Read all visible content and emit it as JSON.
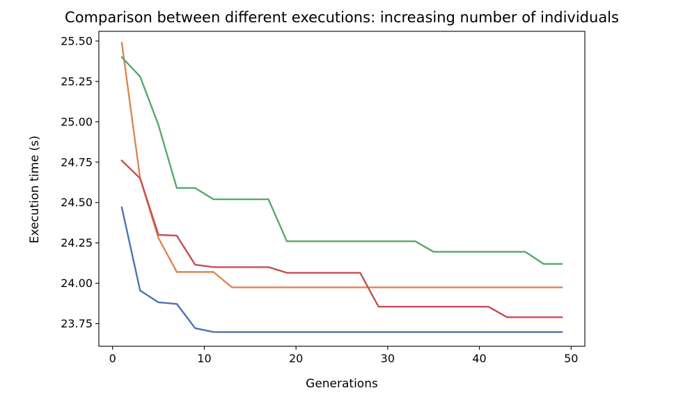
{
  "chart_data": {
    "type": "line",
    "title": "Comparison between different executions: increasing number of individuals",
    "xlabel": "Generations",
    "ylabel": "Execution time (s)",
    "xlim": [
      -1.5,
      51.5
    ],
    "ylim": [
      23.61,
      25.56
    ],
    "x_ticks": [
      0,
      10,
      20,
      30,
      40,
      50
    ],
    "y_ticks": [
      23.75,
      24.0,
      24.25,
      24.5,
      24.75,
      25.0,
      25.25,
      25.5
    ],
    "y_tick_labels": [
      "23.75",
      "24.00",
      "24.25",
      "24.50",
      "24.75",
      "25.00",
      "25.25",
      "25.50"
    ],
    "grid": false,
    "x": [
      1,
      3,
      5,
      7,
      9,
      11,
      13,
      15,
      17,
      19,
      21,
      23,
      25,
      27,
      29,
      31,
      33,
      35,
      37,
      39,
      41,
      43,
      45,
      47,
      49
    ],
    "series": [
      {
        "color": "#4c72b0",
        "values": [
          24.47,
          23.955,
          23.882,
          23.872,
          23.722,
          23.698,
          23.698,
          23.698,
          23.698,
          23.698,
          23.698,
          23.698,
          23.698,
          23.698,
          23.698,
          23.698,
          23.698,
          23.698,
          23.698,
          23.698,
          23.698,
          23.698,
          23.698,
          23.698,
          23.698
        ]
      },
      {
        "color": "#dd8452",
        "values": [
          25.49,
          24.65,
          24.28,
          24.07,
          24.07,
          24.07,
          23.975,
          23.975,
          23.975,
          23.975,
          23.975,
          23.975,
          23.975,
          23.975,
          23.975,
          23.975,
          23.975,
          23.975,
          23.975,
          23.975,
          23.975,
          23.975,
          23.975,
          23.975,
          23.975
        ]
      },
      {
        "color": "#55a868",
        "values": [
          25.4,
          25.28,
          24.98,
          24.59,
          24.59,
          24.52,
          24.52,
          24.52,
          24.52,
          24.26,
          24.26,
          24.26,
          24.26,
          24.26,
          24.26,
          24.26,
          24.26,
          24.195,
          24.195,
          24.195,
          24.195,
          24.195,
          24.195,
          24.12,
          24.12
        ]
      },
      {
        "color": "#c44e52",
        "values": [
          24.76,
          24.65,
          24.3,
          24.295,
          24.115,
          24.1,
          24.1,
          24.1,
          24.1,
          24.065,
          24.065,
          24.065,
          24.065,
          24.065,
          23.855,
          23.855,
          23.855,
          23.855,
          23.855,
          23.855,
          23.855,
          23.79,
          23.79,
          23.79,
          23.79
        ]
      }
    ]
  }
}
